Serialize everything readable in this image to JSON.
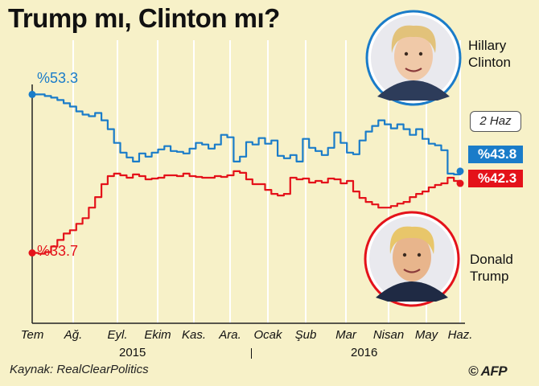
{
  "title": "Trump mı, Clinton mı?",
  "source": "Kaynak: RealClearPolitics",
  "credit": "© AFP",
  "date_label": "2 Haz",
  "colors": {
    "clinton": "#1a7cc9",
    "trump": "#e4121a",
    "background": "#f7f1c8",
    "grid": "#ffffff"
  },
  "candidates": {
    "clinton": {
      "name_line1": "Hillary",
      "name_line2": "Clinton",
      "photo_icon": "hillary-clinton-portrait"
    },
    "trump": {
      "name_line1": "Donald",
      "name_line2": "Trump",
      "photo_icon": "donald-trump-portrait"
    }
  },
  "chart_data": {
    "type": "line",
    "title": "Trump mı, Clinton mı?",
    "x_ticks": [
      "Tem",
      "Ağ.",
      "Eyl.",
      "Ekim",
      "Kas.",
      "Ara.",
      "Ocak",
      "Şub",
      "Mar",
      "Nisan",
      "May",
      "Haz."
    ],
    "year_labels": [
      "2015",
      "2016"
    ],
    "ylim": [
      25,
      60
    ],
    "grid": "vertical",
    "series": [
      {
        "name": "Clinton",
        "start_label": "%53.3",
        "end_label": "%43.8",
        "values": [
          53.3,
          53.3,
          53.1,
          52.9,
          52.6,
          52.2,
          51.8,
          51.2,
          50.8,
          50.6,
          51.0,
          50.1,
          49.0,
          47.3,
          46.1,
          45.5,
          45.0,
          46.0,
          45.6,
          46.1,
          46.5,
          46.9,
          46.3,
          46.2,
          46.0,
          46.6,
          47.3,
          47.1,
          46.6,
          47.1,
          48.3,
          48.0,
          45.0,
          45.6,
          47.4,
          47.1,
          47.9,
          47.2,
          47.6,
          45.7,
          45.4,
          45.8,
          45.0,
          47.8,
          46.7,
          46.3,
          45.8,
          46.7,
          48.6,
          47.3,
          46.1,
          45.9,
          47.6,
          48.7,
          49.4,
          50.1,
          49.6,
          49.1,
          49.6,
          49.0,
          48.3,
          49.0,
          47.8,
          47.2,
          47.0,
          46.4,
          43.5,
          43.4,
          43.8
        ]
      },
      {
        "name": "Trump",
        "start_label": "%33.7",
        "end_label": "%42.3",
        "values": [
          33.7,
          33.6,
          33.8,
          34.5,
          35.3,
          36.1,
          36.5,
          37.3,
          38.0,
          39.3,
          40.6,
          42.2,
          43.2,
          43.5,
          43.3,
          43.0,
          43.4,
          43.2,
          42.8,
          42.9,
          43.0,
          43.3,
          43.3,
          43.2,
          43.5,
          43.2,
          43.1,
          43.0,
          43.0,
          43.2,
          43.1,
          43.3,
          43.8,
          43.6,
          42.8,
          42.2,
          42.2,
          41.5,
          41.0,
          40.8,
          41.0,
          43.0,
          42.8,
          42.9,
          42.4,
          42.6,
          42.4,
          42.9,
          42.8,
          42.3,
          42.6,
          41.3,
          40.5,
          40.0,
          39.7,
          39.3,
          39.3,
          39.5,
          39.8,
          40.0,
          40.6,
          41.0,
          41.3,
          41.8,
          42.1,
          42.3,
          43.0,
          42.6,
          42.3
        ]
      }
    ]
  }
}
